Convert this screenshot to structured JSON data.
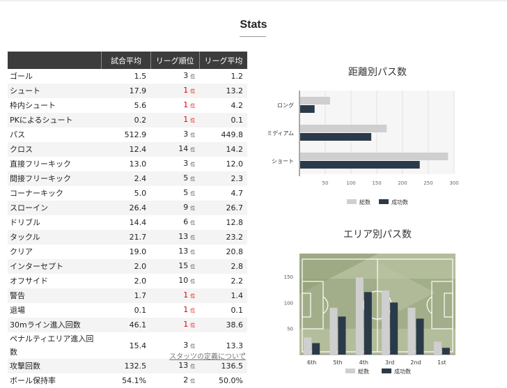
{
  "page": {
    "title": "Stats",
    "definition_link": "スタッツの定義について",
    "definition_arrow": "›"
  },
  "table": {
    "headers": [
      "",
      "試合平均",
      "リーグ順位",
      "リーグ平均"
    ],
    "rank_suffix": "位",
    "rows": [
      {
        "label": "ゴール",
        "avg": "1.5",
        "rank": "3",
        "league_avg": "1.2",
        "top": false
      },
      {
        "label": "シュート",
        "avg": "17.9",
        "rank": "1",
        "league_avg": "13.2",
        "top": true
      },
      {
        "label": "枠内シュート",
        "avg": "5.6",
        "rank": "1",
        "league_avg": "4.2",
        "top": true
      },
      {
        "label": "PKによるシュート",
        "avg": "0.2",
        "rank": "1",
        "league_avg": "0.1",
        "top": true
      },
      {
        "label": "パス",
        "avg": "512.9",
        "rank": "3",
        "league_avg": "449.8",
        "top": false
      },
      {
        "label": "クロス",
        "avg": "12.4",
        "rank": "14",
        "league_avg": "14.2",
        "top": false
      },
      {
        "label": "直接フリーキック",
        "avg": "13.0",
        "rank": "3",
        "league_avg": "12.0",
        "top": false
      },
      {
        "label": "間接フリーキック",
        "avg": "2.4",
        "rank": "5",
        "league_avg": "2.3",
        "top": false
      },
      {
        "label": "コーナーキック",
        "avg": "5.0",
        "rank": "5",
        "league_avg": "4.7",
        "top": false
      },
      {
        "label": "スローイン",
        "avg": "26.4",
        "rank": "9",
        "league_avg": "26.7",
        "top": false
      },
      {
        "label": "ドリブル",
        "avg": "14.4",
        "rank": "6",
        "league_avg": "12.8",
        "top": false
      },
      {
        "label": "タックル",
        "avg": "21.7",
        "rank": "13",
        "league_avg": "23.2",
        "top": false
      },
      {
        "label": "クリア",
        "avg": "19.0",
        "rank": "13",
        "league_avg": "20.8",
        "top": false
      },
      {
        "label": "インターセプト",
        "avg": "2.0",
        "rank": "15",
        "league_avg": "2.8",
        "top": false
      },
      {
        "label": "オフサイド",
        "avg": "2.0",
        "rank": "10",
        "league_avg": "2.2",
        "top": false
      },
      {
        "label": "警告",
        "avg": "1.7",
        "rank": "1",
        "league_avg": "1.4",
        "top": true
      },
      {
        "label": "退場",
        "avg": "0.1",
        "rank": "1",
        "league_avg": "0.1",
        "top": true
      },
      {
        "label": "30mライン進入回数",
        "avg": "46.1",
        "rank": "1",
        "league_avg": "38.6",
        "top": true
      },
      {
        "label": "ペナルティエリア進入回数",
        "avg": "15.4",
        "rank": "3",
        "league_avg": "13.3",
        "top": false
      },
      {
        "label": "攻撃回数",
        "avg": "132.5",
        "rank": "13",
        "league_avg": "136.5",
        "top": false
      },
      {
        "label": "ボール保持率",
        "avg": "54.1%",
        "rank": "2",
        "league_avg": "50.0%",
        "top": false
      }
    ]
  },
  "colors": {
    "total": "#cfcfcf",
    "success": "#2b3a48",
    "rank_top": "#dd0000",
    "header_bg": "#3c3c3c"
  },
  "chart_data": [
    {
      "type": "bar",
      "orientation": "horizontal",
      "title": "距離別パス数",
      "categories": [
        "ロング",
        "ミディアム",
        "ショート"
      ],
      "series": [
        {
          "name": "総数",
          "values": [
            58,
            168,
            287
          ]
        },
        {
          "name": "成功数",
          "values": [
            28,
            138,
            232
          ]
        }
      ],
      "xticks": [
        50,
        100,
        150,
        200,
        250,
        300
      ],
      "xlim": [
        0,
        300
      ],
      "grid": true,
      "legend": "bottom"
    },
    {
      "type": "bar",
      "title": "エリア別パス数",
      "categories": [
        "6th",
        "5th",
        "4th",
        "3rd",
        "2nd",
        "1st"
      ],
      "series": [
        {
          "name": "総数",
          "values": [
            33,
            90,
            148,
            123,
            90,
            25
          ]
        },
        {
          "name": "成功数",
          "values": [
            22,
            73,
            120,
            100,
            69,
            13
          ]
        }
      ],
      "yticks": [
        50,
        100,
        150
      ],
      "ylim": [
        0,
        194
      ],
      "legend": "bottom",
      "background": "football pitch"
    }
  ]
}
